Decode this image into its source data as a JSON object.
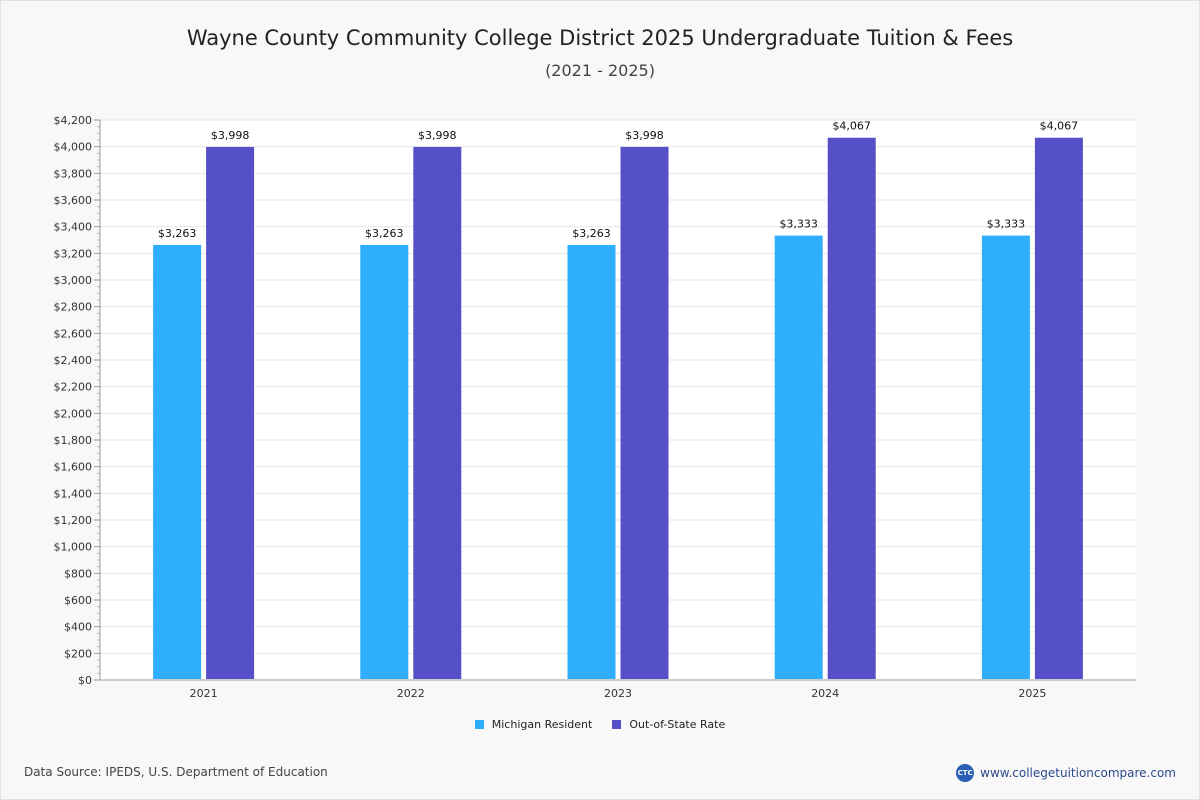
{
  "chart_data": {
    "type": "bar",
    "title": "Wayne County Community College District 2025 Undergraduate Tuition & Fees",
    "subtitle": "(2021 - 2025)",
    "categories": [
      "2021",
      "2022",
      "2023",
      "2024",
      "2025"
    ],
    "series": [
      {
        "name": "Michigan Resident",
        "color": "#2eaefc",
        "values": [
          3263,
          3263,
          3263,
          3333,
          3333
        ],
        "labels": [
          "$3,263",
          "$3,263",
          "$3,263",
          "$3,333",
          "$3,333"
        ]
      },
      {
        "name": "Out-of-State Rate",
        "color": "#554fc8",
        "values": [
          3998,
          3998,
          3998,
          4067,
          4067
        ],
        "labels": [
          "$3,998",
          "$3,998",
          "$3,998",
          "$4,067",
          "$4,067"
        ]
      }
    ],
    "ylim": [
      0,
      4200
    ],
    "ytick_step": 200,
    "yticks": [
      "$0",
      "$200",
      "$400",
      "$600",
      "$800",
      "$1,000",
      "$1,200",
      "$1,400",
      "$1,600",
      "$1,800",
      "$2,000",
      "$2,200",
      "$2,400",
      "$2,600",
      "$2,800",
      "$3,000",
      "$3,200",
      "$3,400",
      "$3,600",
      "$3,800",
      "$4,000",
      "$4,200"
    ],
    "grid": true,
    "legend_position": "bottom-center"
  },
  "footer": {
    "source": "Data Source: IPEDS, U.S. Department of Education",
    "brand_logo": "CTC",
    "brand_url": "www.collegetuitioncompare.com"
  }
}
